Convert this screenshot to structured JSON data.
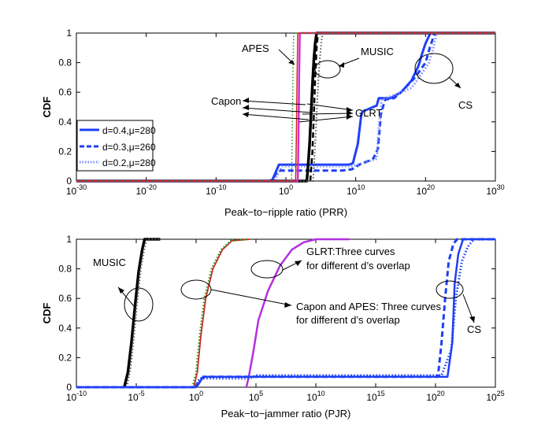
{
  "chart_data": [
    {
      "type": "line",
      "xscale": "log",
      "xlabel": "Peak−to−ripple ratio (PRR)",
      "ylabel": "CDF",
      "x_exponent_ticks": [
        -30,
        -20,
        -10,
        0,
        10,
        20,
        30
      ],
      "tick_base": "10",
      "y_ticks": [
        "0",
        "0.2",
        "0.4",
        "0.6",
        "0.8",
        "1"
      ],
      "xlim_exponent": [
        -30,
        30
      ],
      "ylim": [
        0,
        1
      ],
      "legend": {
        "position": "left",
        "entries": [
          {
            "label": "d=0.4,μ=280",
            "style": "solid"
          },
          {
            "label": "d=0.3,μ=260",
            "style": "dashed"
          },
          {
            "label": "d=0.2,μ=280",
            "style": "dotted"
          }
        ]
      },
      "annotations": {
        "apes": "APES",
        "music": "MUSIC",
        "capon": "Capon",
        "glrt": "GLRT",
        "cs": "CS"
      },
      "series": [
        {
          "name": "CS",
          "color": "#1f3ff5",
          "style": "solid",
          "width": 3,
          "points": [
            [
              -30,
              0
            ],
            [
              -2,
              0
            ],
            [
              -1,
              0.11
            ],
            [
              9,
              0.11
            ],
            [
              9.6,
              0.12
            ],
            [
              10.3,
              0.25
            ],
            [
              10.8,
              0.45
            ],
            [
              11,
              0.47
            ],
            [
              12.5,
              0.5
            ],
            [
              13,
              0.51
            ],
            [
              13.3,
              0.56
            ],
            [
              15,
              0.56
            ],
            [
              16.5,
              0.6
            ],
            [
              18,
              0.68
            ],
            [
              19,
              0.78
            ],
            [
              19.5,
              0.86
            ],
            [
              20,
              0.93
            ],
            [
              20.7,
              1
            ],
            [
              30,
              1
            ]
          ]
        },
        {
          "name": "CS",
          "color": "#1f3ff5",
          "style": "dashed",
          "width": 3,
          "points": [
            [
              -30,
              0
            ],
            [
              -2.2,
              0
            ],
            [
              -1,
              0.07
            ],
            [
              2,
              0.07
            ],
            [
              8,
              0.07
            ],
            [
              9.5,
              0.08
            ],
            [
              10.5,
              0.11
            ],
            [
              11.5,
              0.13
            ],
            [
              12.5,
              0.15
            ],
            [
              13.2,
              0.22
            ],
            [
              13.6,
              0.45
            ],
            [
              14.2,
              0.55
            ],
            [
              15.5,
              0.56
            ],
            [
              16.5,
              0.6
            ],
            [
              18.5,
              0.7
            ],
            [
              20,
              0.8
            ],
            [
              20.6,
              0.9
            ],
            [
              21.3,
              1
            ],
            [
              30,
              1
            ]
          ]
        },
        {
          "name": "CS",
          "color": "#7a8cff",
          "style": "dotted",
          "width": 3,
          "points": [
            [
              -30,
              0
            ],
            [
              -1.7,
              0
            ],
            [
              -0.5,
              0.1
            ],
            [
              9.5,
              0.1
            ],
            [
              11,
              0.12
            ],
            [
              13,
              0.15
            ],
            [
              13.3,
              0.35
            ],
            [
              13.7,
              0.55
            ],
            [
              15.5,
              0.58
            ],
            [
              18,
              0.63
            ],
            [
              19.5,
              0.73
            ],
            [
              20.5,
              0.8
            ],
            [
              21,
              0.88
            ],
            [
              21.6,
              1
            ],
            [
              30,
              1
            ]
          ]
        },
        {
          "name": "MUSIC",
          "color": "#000000",
          "style": "solid",
          "width": 3.5,
          "points": [
            [
              -30,
              0
            ],
            [
              3,
              0
            ],
            [
              3.2,
              0.12
            ],
            [
              3.4,
              0.25
            ],
            [
              3.6,
              0.45
            ],
            [
              3.8,
              0.65
            ],
            [
              4.0,
              0.82
            ],
            [
              4.2,
              0.93
            ],
            [
              4.4,
              1
            ],
            [
              30,
              1
            ]
          ]
        },
        {
          "name": "MUSIC",
          "color": "#000000",
          "style": "dashed",
          "width": 2.5,
          "points": [
            [
              -30,
              0
            ],
            [
              3.5,
              0
            ],
            [
              3.8,
              0.2
            ],
            [
              4.0,
              0.45
            ],
            [
              4.2,
              0.7
            ],
            [
              4.4,
              0.9
            ],
            [
              4.6,
              1
            ],
            [
              30,
              1
            ]
          ]
        },
        {
          "name": "MUSIC",
          "color": "#555555",
          "style": "dotted",
          "width": 2,
          "points": [
            [
              -30,
              0
            ],
            [
              3.9,
              0
            ],
            [
              4.2,
              0.25
            ],
            [
              4.5,
              0.55
            ],
            [
              4.8,
              0.8
            ],
            [
              5.1,
              0.95
            ],
            [
              5.3,
              1
            ],
            [
              30,
              1
            ]
          ]
        },
        {
          "name": "GLRT",
          "color": "#d12fd1",
          "style": "solid",
          "width": 2.5,
          "points": [
            [
              -30,
              0
            ],
            [
              1.7,
              0
            ],
            [
              1.8,
              0.3
            ],
            [
              1.9,
              0.7
            ],
            [
              2.0,
              1
            ],
            [
              30,
              1
            ]
          ]
        },
        {
          "name": "Capon",
          "color": "#d92020",
          "style": "solid",
          "width": 1.5,
          "points": [
            [
              -30,
              0
            ],
            [
              1.4,
              0
            ],
            [
              1.5,
              0.3
            ],
            [
              1.6,
              0.7
            ],
            [
              1.7,
              1
            ],
            [
              30,
              1
            ]
          ]
        },
        {
          "name": "APES",
          "color": "#209020",
          "style": "dotted",
          "width": 1.5,
          "points": [
            [
              -30,
              0
            ],
            [
              0.8,
              0
            ],
            [
              0.9,
              0.3
            ],
            [
              1.0,
              0.7
            ],
            [
              1.1,
              1
            ],
            [
              30,
              1
            ]
          ]
        }
      ]
    },
    {
      "type": "line",
      "xscale": "log",
      "xlabel": "Peak−to−jammer ratio (PJR)",
      "ylabel": "CDF",
      "x_exponent_ticks": [
        -10,
        -5,
        0,
        5,
        10,
        15,
        20,
        25
      ],
      "tick_base": "10",
      "y_ticks": [
        "0",
        "0.2",
        "0.4",
        "0.6",
        "0.8",
        "1"
      ],
      "xlim_exponent": [
        -10,
        25
      ],
      "ylim": [
        0,
        1
      ],
      "annotations": {
        "music": "MUSIC",
        "glrt_line1": "GLRT:Three curves",
        "glrt_line2": "for different d’s overlap",
        "capon_line1": "Capon and APES: Three curves",
        "capon_line2": "for different d’s overlap",
        "cs": "CS"
      },
      "series": [
        {
          "name": "MUSIC",
          "color": "#000000",
          "style": "solid",
          "width": 3.5,
          "points": [
            [
              -6,
              0
            ],
            [
              -5.7,
              0.1
            ],
            [
              -5.4,
              0.3
            ],
            [
              -5.1,
              0.55
            ],
            [
              -4.8,
              0.78
            ],
            [
              -4.5,
              0.93
            ],
            [
              -4.3,
              1
            ],
            [
              -3,
              1
            ]
          ]
        },
        {
          "name": "MUSIC",
          "color": "#555555",
          "style": "dotted",
          "width": 2.5,
          "points": [
            [
              -5.8,
              0
            ],
            [
              -5.5,
              0.12
            ],
            [
              -5.2,
              0.35
            ],
            [
              -4.9,
              0.6
            ],
            [
              -4.6,
              0.82
            ],
            [
              -4.3,
              0.95
            ],
            [
              -4.1,
              1
            ],
            [
              -3,
              1
            ]
          ]
        },
        {
          "name": "Capon",
          "color": "#d92020",
          "style": "solid",
          "width": 1.8,
          "points": [
            [
              -0.2,
              0
            ],
            [
              0.1,
              0.1
            ],
            [
              0.4,
              0.35
            ],
            [
              0.8,
              0.6
            ],
            [
              1.4,
              0.8
            ],
            [
              2.2,
              0.93
            ],
            [
              3,
              0.99
            ],
            [
              4.5,
              1
            ]
          ]
        },
        {
          "name": "APES",
          "color": "#209020",
          "style": "dotted",
          "width": 2.5,
          "points": [
            [
              -0.3,
              0
            ],
            [
              0,
              0.1
            ],
            [
              0.3,
              0.35
            ],
            [
              0.7,
              0.6
            ],
            [
              1.3,
              0.8
            ],
            [
              2.1,
              0.93
            ],
            [
              2.9,
              0.99
            ],
            [
              4.3,
              1
            ]
          ]
        },
        {
          "name": "GLRT",
          "color": "#b52fe0",
          "style": "solid",
          "width": 2.5,
          "points": [
            [
              4.2,
              0
            ],
            [
              4.4,
              0.07
            ],
            [
              4.8,
              0.25
            ],
            [
              5.2,
              0.45
            ],
            [
              6,
              0.65
            ],
            [
              7,
              0.82
            ],
            [
              8,
              0.93
            ],
            [
              9,
              0.98
            ],
            [
              10,
              1
            ],
            [
              12.8,
              1
            ]
          ]
        },
        {
          "name": "CS",
          "color": "#1f3ff5",
          "style": "dotted",
          "width": 3,
          "points": [
            [
              -10,
              0
            ],
            [
              -0.1,
              0
            ],
            [
              0.3,
              0.06
            ],
            [
              4.5,
              0.06
            ],
            [
              5,
              0.08
            ],
            [
              20.5,
              0.08
            ],
            [
              21.3,
              0.25
            ],
            [
              21.7,
              0.6
            ],
            [
              22.2,
              0.85
            ],
            [
              22.7,
              0.95
            ],
            [
              23.2,
              1
            ],
            [
              25,
              1
            ]
          ]
        },
        {
          "name": "CS",
          "color": "#1f3ff5",
          "style": "solid",
          "width": 2.5,
          "points": [
            [
              -10,
              0
            ],
            [
              0,
              0
            ],
            [
              0.6,
              0.07
            ],
            [
              21,
              0.07
            ],
            [
              21.4,
              0.3
            ],
            [
              21.6,
              0.7
            ],
            [
              21.9,
              0.9
            ],
            [
              22.3,
              1
            ],
            [
              25,
              1
            ]
          ]
        },
        {
          "name": "CS",
          "color": "#1f3ff5",
          "style": "dashed",
          "width": 3,
          "points": [
            [
              -10,
              0
            ],
            [
              0,
              0
            ],
            [
              0.6,
              0.07
            ],
            [
              20.2,
              0.07
            ],
            [
              20.5,
              0.3
            ],
            [
              20.8,
              0.6
            ],
            [
              21.1,
              0.85
            ],
            [
              21.5,
              0.97
            ],
            [
              21.8,
              1
            ],
            [
              25,
              1
            ]
          ]
        }
      ]
    }
  ]
}
